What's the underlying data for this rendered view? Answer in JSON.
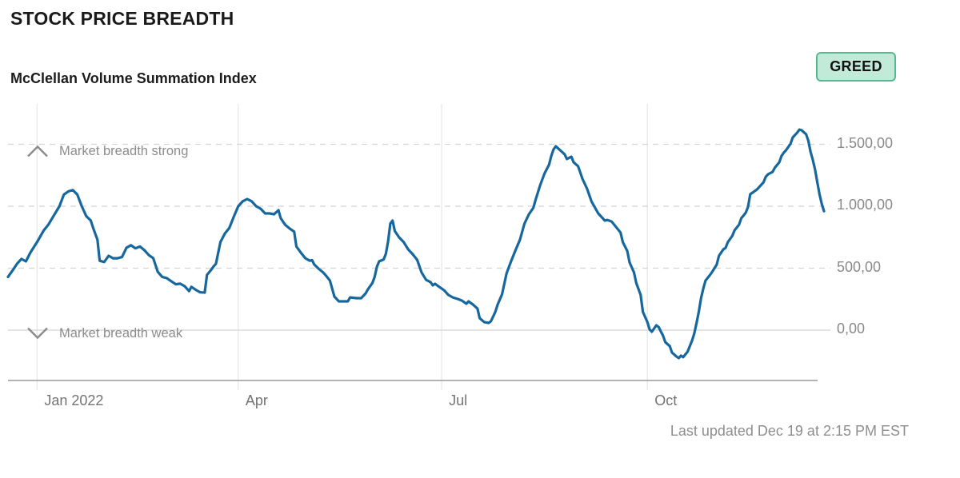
{
  "header": {
    "title": "STOCK PRICE BREADTH",
    "subtitle": "McClellan Volume Summation Index"
  },
  "status_badge": {
    "label": "GREED",
    "background": "#c2ead9",
    "border": "#57b894",
    "text_color": "#111111"
  },
  "annotations": {
    "strong": "Market breadth strong",
    "weak": "Market breadth weak"
  },
  "footer": {
    "last_updated": "Last updated Dec 19 at 2:15 PM EST"
  },
  "chart_data": {
    "type": "line",
    "title": "McClellan Volume Summation Index",
    "series_name": "McClellan Volume Summation Index",
    "line_color": "#15679e",
    "grid": "on",
    "legend_position": "none",
    "xlim": [
      "2021-12-19",
      "2022-12-19"
    ],
    "ylim": [
      -406,
      1826
    ],
    "x_ticks": [
      {
        "label": "Jan 2022",
        "date": "2022-01-01"
      },
      {
        "label": "Apr",
        "date": "2022-04-01"
      },
      {
        "label": "Jul",
        "date": "2022-07-01"
      },
      {
        "label": "Oct",
        "date": "2022-10-01"
      }
    ],
    "y_ticks": [
      {
        "label": "1.500,00",
        "value": 1500
      },
      {
        "label": "1.000,00",
        "value": 1000
      },
      {
        "label": "500,00",
        "value": 500
      },
      {
        "label": "0,00",
        "value": 0
      }
    ],
    "points": [
      [
        "2021-12-19",
        430
      ],
      [
        "2021-12-21",
        480
      ],
      [
        "2021-12-23",
        535
      ],
      [
        "2021-12-25",
        575
      ],
      [
        "2021-12-27",
        555
      ],
      [
        "2021-12-29",
        625
      ],
      [
        "2022-01-01",
        710
      ],
      [
        "2022-01-04",
        805
      ],
      [
        "2022-01-06",
        850
      ],
      [
        "2022-01-08",
        910
      ],
      [
        "2022-01-11",
        1000
      ],
      [
        "2022-01-13",
        1095
      ],
      [
        "2022-01-15",
        1120
      ],
      [
        "2022-01-17",
        1130
      ],
      [
        "2022-01-19",
        1095
      ],
      [
        "2022-01-21",
        1000
      ],
      [
        "2022-01-23",
        920
      ],
      [
        "2022-01-25",
        885
      ],
      [
        "2022-01-26",
        830
      ],
      [
        "2022-01-28",
        730
      ],
      [
        "2022-01-29",
        560
      ],
      [
        "2022-01-31",
        550
      ],
      [
        "2022-02-02",
        600
      ],
      [
        "2022-02-04",
        580
      ],
      [
        "2022-02-06",
        580
      ],
      [
        "2022-02-08",
        590
      ],
      [
        "2022-02-10",
        665
      ],
      [
        "2022-02-12",
        685
      ],
      [
        "2022-02-14",
        660
      ],
      [
        "2022-02-16",
        675
      ],
      [
        "2022-02-18",
        645
      ],
      [
        "2022-02-20",
        605
      ],
      [
        "2022-02-22",
        580
      ],
      [
        "2022-02-24",
        470
      ],
      [
        "2022-02-26",
        430
      ],
      [
        "2022-02-28",
        420
      ],
      [
        "2022-03-02",
        395
      ],
      [
        "2022-03-04",
        370
      ],
      [
        "2022-03-06",
        375
      ],
      [
        "2022-03-08",
        355
      ],
      [
        "2022-03-10",
        315
      ],
      [
        "2022-03-11",
        350
      ],
      [
        "2022-03-13",
        325
      ],
      [
        "2022-03-15",
        305
      ],
      [
        "2022-03-17",
        303
      ],
      [
        "2022-03-18",
        445
      ],
      [
        "2022-03-20",
        490
      ],
      [
        "2022-03-21",
        515
      ],
      [
        "2022-03-22",
        535
      ],
      [
        "2022-03-24",
        710
      ],
      [
        "2022-03-26",
        780
      ],
      [
        "2022-03-28",
        825
      ],
      [
        "2022-03-30",
        915
      ],
      [
        "2022-04-01",
        1000
      ],
      [
        "2022-04-03",
        1040
      ],
      [
        "2022-04-05",
        1058
      ],
      [
        "2022-04-07",
        1040
      ],
      [
        "2022-04-09",
        1000
      ],
      [
        "2022-04-11",
        980
      ],
      [
        "2022-04-13",
        942
      ],
      [
        "2022-04-15",
        942
      ],
      [
        "2022-04-17",
        935
      ],
      [
        "2022-04-19",
        968
      ],
      [
        "2022-04-20",
        903
      ],
      [
        "2022-04-22",
        850
      ],
      [
        "2022-04-24",
        820
      ],
      [
        "2022-04-26",
        795
      ],
      [
        "2022-04-27",
        675
      ],
      [
        "2022-04-29",
        625
      ],
      [
        "2022-05-01",
        580
      ],
      [
        "2022-05-03",
        560
      ],
      [
        "2022-05-04",
        565
      ],
      [
        "2022-05-05",
        530
      ],
      [
        "2022-05-07",
        495
      ],
      [
        "2022-05-09",
        465
      ],
      [
        "2022-05-10",
        445
      ],
      [
        "2022-05-12",
        400
      ],
      [
        "2022-05-13",
        335
      ],
      [
        "2022-05-14",
        270
      ],
      [
        "2022-05-16",
        232
      ],
      [
        "2022-05-18",
        232
      ],
      [
        "2022-05-20",
        232
      ],
      [
        "2022-05-21",
        264
      ],
      [
        "2022-05-24",
        258
      ],
      [
        "2022-05-26",
        258
      ],
      [
        "2022-05-28",
        297
      ],
      [
        "2022-05-29",
        330
      ],
      [
        "2022-05-31",
        380
      ],
      [
        "2022-06-01",
        430
      ],
      [
        "2022-06-02",
        510
      ],
      [
        "2022-06-03",
        555
      ],
      [
        "2022-06-05",
        570
      ],
      [
        "2022-06-06",
        615
      ],
      [
        "2022-06-07",
        715
      ],
      [
        "2022-06-08",
        860
      ],
      [
        "2022-06-09",
        884
      ],
      [
        "2022-06-10",
        800
      ],
      [
        "2022-06-12",
        748
      ],
      [
        "2022-06-14",
        710
      ],
      [
        "2022-06-16",
        652
      ],
      [
        "2022-06-18",
        613
      ],
      [
        "2022-06-20",
        568
      ],
      [
        "2022-06-22",
        465
      ],
      [
        "2022-06-24",
        406
      ],
      [
        "2022-06-26",
        387
      ],
      [
        "2022-06-27",
        361
      ],
      [
        "2022-06-28",
        374
      ],
      [
        "2022-06-30",
        348
      ],
      [
        "2022-07-02",
        323
      ],
      [
        "2022-07-04",
        284
      ],
      [
        "2022-07-06",
        264
      ],
      [
        "2022-07-08",
        252
      ],
      [
        "2022-07-10",
        239
      ],
      [
        "2022-07-12",
        213
      ],
      [
        "2022-07-13",
        232
      ],
      [
        "2022-07-15",
        206
      ],
      [
        "2022-07-17",
        174
      ],
      [
        "2022-07-18",
        97
      ],
      [
        "2022-07-20",
        65
      ],
      [
        "2022-07-22",
        58
      ],
      [
        "2022-07-23",
        71
      ],
      [
        "2022-07-25",
        148
      ],
      [
        "2022-07-26",
        206
      ],
      [
        "2022-07-28",
        290
      ],
      [
        "2022-07-30",
        458
      ],
      [
        "2022-08-01",
        555
      ],
      [
        "2022-08-03",
        645
      ],
      [
        "2022-08-05",
        729
      ],
      [
        "2022-08-07",
        858
      ],
      [
        "2022-08-09",
        935
      ],
      [
        "2022-08-11",
        987
      ],
      [
        "2022-08-12",
        1052
      ],
      [
        "2022-08-14",
        1168
      ],
      [
        "2022-08-16",
        1265
      ],
      [
        "2022-08-18",
        1335
      ],
      [
        "2022-08-19",
        1406
      ],
      [
        "2022-08-20",
        1458
      ],
      [
        "2022-08-21",
        1484
      ],
      [
        "2022-08-23",
        1452
      ],
      [
        "2022-08-25",
        1419
      ],
      [
        "2022-08-26",
        1381
      ],
      [
        "2022-08-28",
        1400
      ],
      [
        "2022-08-29",
        1355
      ],
      [
        "2022-08-31",
        1323
      ],
      [
        "2022-09-02",
        1219
      ],
      [
        "2022-09-04",
        1142
      ],
      [
        "2022-09-06",
        1039
      ],
      [
        "2022-09-08",
        974
      ],
      [
        "2022-09-09",
        942
      ],
      [
        "2022-09-12",
        884
      ],
      [
        "2022-09-13",
        890
      ],
      [
        "2022-09-15",
        877
      ],
      [
        "2022-09-17",
        832
      ],
      [
        "2022-09-19",
        787
      ],
      [
        "2022-09-20",
        710
      ],
      [
        "2022-09-22",
        639
      ],
      [
        "2022-09-23",
        548
      ],
      [
        "2022-09-25",
        465
      ],
      [
        "2022-09-26",
        381
      ],
      [
        "2022-09-28",
        284
      ],
      [
        "2022-09-29",
        148
      ],
      [
        "2022-10-01",
        65
      ],
      [
        "2022-10-02",
        6
      ],
      [
        "2022-10-03",
        -13
      ],
      [
        "2022-10-05",
        39
      ],
      [
        "2022-10-06",
        26
      ],
      [
        "2022-10-08",
        -45
      ],
      [
        "2022-10-09",
        -97
      ],
      [
        "2022-10-11",
        -129
      ],
      [
        "2022-10-12",
        -181
      ],
      [
        "2022-10-14",
        -213
      ],
      [
        "2022-10-15",
        -226
      ],
      [
        "2022-10-16",
        -206
      ],
      [
        "2022-10-17",
        -219
      ],
      [
        "2022-10-19",
        -174
      ],
      [
        "2022-10-20",
        -129
      ],
      [
        "2022-10-21",
        -84
      ],
      [
        "2022-10-22",
        -26
      ],
      [
        "2022-10-23",
        58
      ],
      [
        "2022-10-24",
        148
      ],
      [
        "2022-10-25",
        258
      ],
      [
        "2022-10-26",
        335
      ],
      [
        "2022-10-27",
        400
      ],
      [
        "2022-10-29",
        445
      ],
      [
        "2022-10-30",
        471
      ],
      [
        "2022-11-01",
        529
      ],
      [
        "2022-11-02",
        600
      ],
      [
        "2022-11-04",
        652
      ],
      [
        "2022-11-05",
        664
      ],
      [
        "2022-11-06",
        710
      ],
      [
        "2022-11-08",
        761
      ],
      [
        "2022-11-09",
        806
      ],
      [
        "2022-11-11",
        851
      ],
      [
        "2022-11-12",
        903
      ],
      [
        "2022-11-14",
        948
      ],
      [
        "2022-11-15",
        994
      ],
      [
        "2022-11-16",
        1097
      ],
      [
        "2022-11-18",
        1122
      ],
      [
        "2022-11-19",
        1135
      ],
      [
        "2022-11-20",
        1155
      ],
      [
        "2022-11-22",
        1194
      ],
      [
        "2022-11-23",
        1239
      ],
      [
        "2022-11-24",
        1258
      ],
      [
        "2022-11-26",
        1277
      ],
      [
        "2022-11-27",
        1310
      ],
      [
        "2022-11-29",
        1355
      ],
      [
        "2022-11-30",
        1406
      ],
      [
        "2022-12-01",
        1432
      ],
      [
        "2022-12-02",
        1452
      ],
      [
        "2022-12-04",
        1503
      ],
      [
        "2022-12-05",
        1555
      ],
      [
        "2022-12-07",
        1594
      ],
      [
        "2022-12-08",
        1619
      ],
      [
        "2022-12-09",
        1613
      ],
      [
        "2022-12-11",
        1581
      ],
      [
        "2022-12-12",
        1529
      ],
      [
        "2022-12-13",
        1439
      ],
      [
        "2022-12-14",
        1374
      ],
      [
        "2022-12-15",
        1297
      ],
      [
        "2022-12-16",
        1194
      ],
      [
        "2022-12-17",
        1097
      ],
      [
        "2022-12-18",
        1019
      ],
      [
        "2022-12-19",
        960
      ]
    ]
  }
}
